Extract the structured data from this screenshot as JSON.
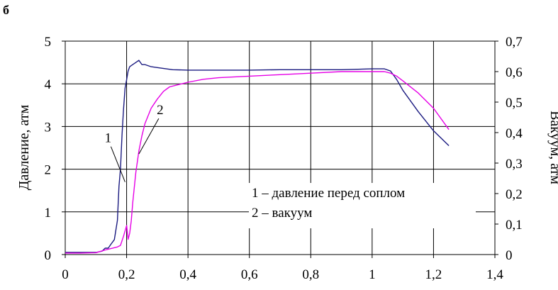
{
  "chart_data": {
    "type": "line",
    "panel_label": "б",
    "xlabel": "",
    "ylabel": "Давление, атм",
    "y2label": "Вакуум, атм",
    "xlim": [
      0,
      1.4
    ],
    "ylim": [
      0,
      5
    ],
    "y2lim": [
      0,
      0.7
    ],
    "x_ticks": [
      "0",
      "0,2",
      "0,4",
      "0,6",
      "0,8",
      "1",
      "1,2",
      "1,4"
    ],
    "y_ticks": [
      "0",
      "1",
      "2",
      "3",
      "4",
      "5"
    ],
    "y2_ticks": [
      "0",
      "0,1",
      "0,2",
      "0,3",
      "0,4",
      "0,5",
      "0,6",
      "0,7"
    ],
    "grid": true,
    "legend": {
      "placement": "bottom-center",
      "entries": [
        "1 – давление перед соплом",
        "2 – вакуум"
      ]
    },
    "series": [
      {
        "label": "1",
        "axis": "left",
        "color": "#1a1a80",
        "x": [
          0,
          0.05,
          0.1,
          0.12,
          0.13,
          0.14,
          0.15,
          0.16,
          0.17,
          0.175,
          0.18,
          0.185,
          0.19,
          0.195,
          0.2,
          0.205,
          0.21,
          0.22,
          0.23,
          0.24,
          0.25,
          0.26,
          0.28,
          0.3,
          0.35,
          0.4,
          0.5,
          0.6,
          0.7,
          0.8,
          0.9,
          1.0,
          1.04,
          1.06,
          1.08,
          1.1,
          1.15,
          1.2,
          1.25
        ],
        "y": [
          0.05,
          0.05,
          0.05,
          0.08,
          0.15,
          0.15,
          0.25,
          0.35,
          0.8,
          1.6,
          2.0,
          2.8,
          3.4,
          3.9,
          4.1,
          4.3,
          4.4,
          4.45,
          4.5,
          4.55,
          4.45,
          4.45,
          4.4,
          4.38,
          4.33,
          4.32,
          4.32,
          4.32,
          4.33,
          4.33,
          4.33,
          4.35,
          4.35,
          4.3,
          4.1,
          3.85,
          3.35,
          2.9,
          2.55
        ]
      },
      {
        "label": "2",
        "axis": "right",
        "color": "#e600e6",
        "x": [
          0,
          0.05,
          0.1,
          0.13,
          0.15,
          0.17,
          0.18,
          0.19,
          0.2,
          0.205,
          0.21,
          0.215,
          0.22,
          0.23,
          0.24,
          0.25,
          0.26,
          0.28,
          0.3,
          0.32,
          0.34,
          0.36,
          0.38,
          0.4,
          0.45,
          0.5,
          0.6,
          0.7,
          0.8,
          0.9,
          1.0,
          1.04,
          1.06,
          1.08,
          1.1,
          1.15,
          1.2,
          1.25
        ],
        "y": [
          0.005,
          0.005,
          0.006,
          0.015,
          0.02,
          0.025,
          0.03,
          0.06,
          0.095,
          0.05,
          0.07,
          0.11,
          0.17,
          0.27,
          0.34,
          0.39,
          0.43,
          0.48,
          0.51,
          0.535,
          0.55,
          0.555,
          0.56,
          0.565,
          0.575,
          0.58,
          0.585,
          0.59,
          0.595,
          0.6,
          0.6,
          0.6,
          0.595,
          0.585,
          0.57,
          0.53,
          0.48,
          0.41
        ]
      }
    ],
    "annotations": [
      {
        "text": "1",
        "series": "1",
        "point": [
          0.195,
          1.7
        ]
      },
      {
        "text": "2",
        "series": "2",
        "point": [
          0.24,
          0.33
        ]
      }
    ]
  }
}
